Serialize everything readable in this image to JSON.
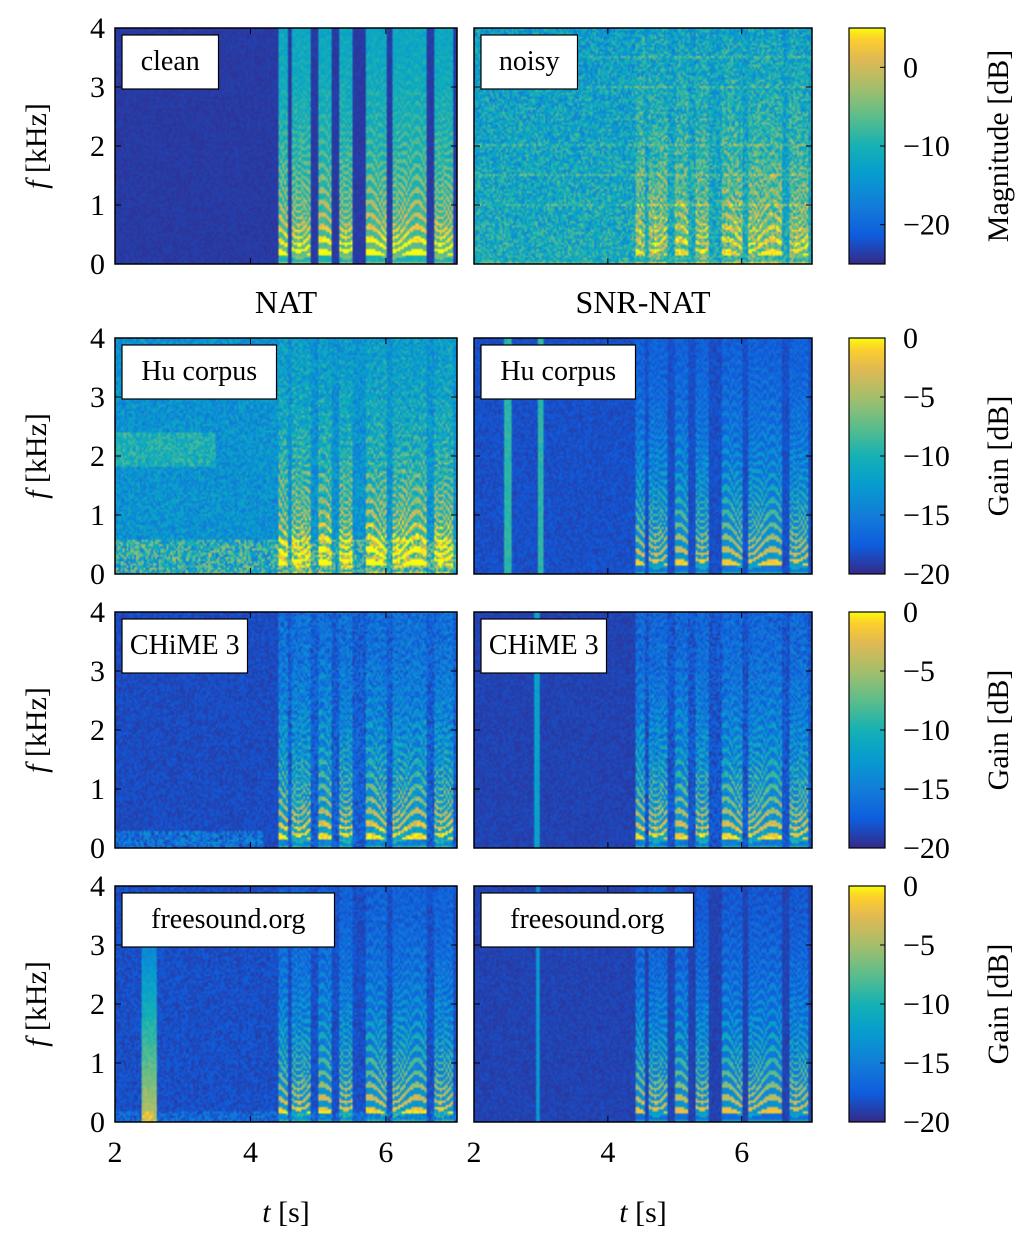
{
  "chart_data": {
    "type": "heatmap",
    "colormap": "parula",
    "grid": false,
    "column_titles": [
      "NAT",
      "SNR-NAT"
    ],
    "x_axis": {
      "label_symbol": "t",
      "label_unit": "[s]",
      "range": [
        2,
        7.05
      ],
      "ticks": [
        2,
        4,
        6
      ]
    },
    "y_axis": {
      "label_symbol": "f",
      "label_unit": "[kHz]",
      "range": [
        0,
        4
      ],
      "ticks": [
        0,
        1,
        2,
        3,
        4
      ]
    },
    "rows": [
      {
        "colorbar": {
          "label": "Magnitude [dB]",
          "range": [
            -25,
            5
          ],
          "ticks": [
            0,
            -10,
            -20
          ]
        },
        "panels": [
          {
            "label": "clean",
            "kind": "clean"
          },
          {
            "label": "noisy",
            "kind": "noisy"
          }
        ]
      },
      {
        "colorbar": {
          "label": "Gain [dB]",
          "range": [
            -20,
            0
          ],
          "ticks": [
            0,
            -5,
            -10,
            -15,
            -20
          ]
        },
        "panels": [
          {
            "label": "Hu corpus",
            "kind": "hu_nat"
          },
          {
            "label": "Hu corpus",
            "kind": "hu_snr"
          }
        ]
      },
      {
        "colorbar": {
          "label": "Gain [dB]",
          "range": [
            -20,
            0
          ],
          "ticks": [
            0,
            -5,
            -10,
            -15,
            -20
          ]
        },
        "panels": [
          {
            "label": "CHiME 3",
            "kind": "chime_nat"
          },
          {
            "label": "CHiME 3",
            "kind": "chime_snr"
          }
        ]
      },
      {
        "colorbar": {
          "label": "Gain [dB]",
          "range": [
            -20,
            0
          ],
          "ticks": [
            0,
            -5,
            -10,
            -15,
            -20
          ]
        },
        "panels": [
          {
            "label": "freesound.org",
            "kind": "fs_nat"
          },
          {
            "label": "freesound.org",
            "kind": "fs_snr"
          }
        ]
      }
    ],
    "speech_segments_s": [
      [
        4.4,
        4.55
      ],
      [
        4.6,
        4.9
      ],
      [
        5.0,
        5.2
      ],
      [
        5.3,
        5.5
      ],
      [
        5.7,
        6.0
      ],
      [
        6.1,
        6.6
      ],
      [
        6.7,
        7.0
      ]
    ]
  }
}
